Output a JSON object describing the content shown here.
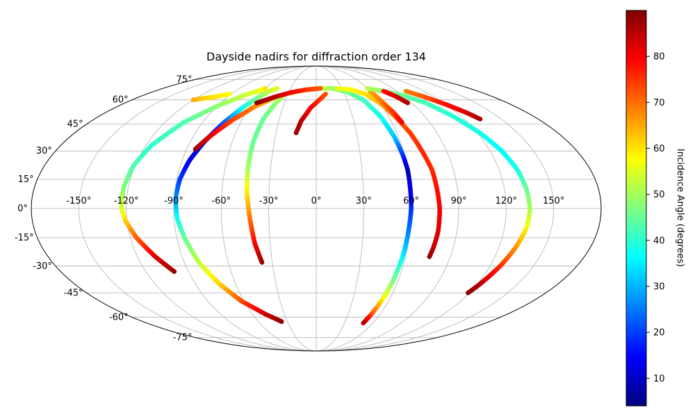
{
  "chart_data": {
    "type": "scatter",
    "projection": "mollweide",
    "title": "Dayside nadirs for diffraction order 134",
    "xlabel": "",
    "ylabel": "",
    "xlim": [
      -180,
      180
    ],
    "ylim": [
      -90,
      90
    ],
    "grid": true,
    "lon_ticks": [
      -150,
      -120,
      -90,
      -60,
      -30,
      0,
      30,
      60,
      90,
      120,
      150
    ],
    "lon_tick_labels": [
      "-150°",
      "-120°",
      "-90°",
      "-60°",
      "-30°",
      "0°",
      "30°",
      "60°",
      "90°",
      "120°",
      "150°"
    ],
    "lat_ticks": [
      75,
      60,
      45,
      30,
      15,
      0,
      -15,
      -30,
      -45,
      -60,
      -75
    ],
    "lat_tick_labels": [
      "75°",
      "60°",
      "45°",
      "30°",
      "15°",
      "0°",
      "-15°",
      "-30°",
      "-45°",
      "-60°",
      "-75°"
    ],
    "colorbar": {
      "label": "Incidence Angle (degrees)",
      "range": [
        4,
        90
      ],
      "ticks": [
        10,
        20,
        30,
        40,
        50,
        60,
        70,
        80
      ],
      "tick_labels": [
        "10",
        "20",
        "30",
        "40",
        "50",
        "60",
        "70",
        "80"
      ],
      "colormap": "jet",
      "stops": [
        "#00007f",
        "#0000ff",
        "#007fff",
        "#00ffff",
        "#7fff7f",
        "#ffff00",
        "#ff7f00",
        "#ff0000",
        "#7f0000"
      ]
    },
    "series": [
      {
        "points": [
          [
            -100,
            -33,
            88
          ],
          [
            -108,
            -25,
            82
          ],
          [
            -116,
            -15,
            72
          ],
          [
            -121,
            -6,
            62
          ],
          [
            -123,
            0,
            55
          ],
          [
            -123,
            10,
            48
          ],
          [
            -121,
            22,
            43
          ],
          [
            -116,
            33,
            40
          ],
          [
            -105,
            46,
            43
          ],
          [
            -90,
            56,
            48
          ],
          [
            -75,
            63,
            53
          ],
          [
            -62,
            67,
            57
          ],
          [
            -60,
            68,
            60
          ]
        ]
      },
      {
        "points": [
          [
            -120,
            60,
            65
          ],
          [
            -112,
            61,
            62
          ],
          [
            -103,
            62,
            60
          ],
          [
            -92,
            64,
            58
          ]
        ]
      },
      {
        "points": [
          [
            -36,
            -63,
            89
          ],
          [
            -48,
            -58,
            84
          ],
          [
            -62,
            -50,
            74
          ],
          [
            -72,
            -40,
            62
          ],
          [
            -80,
            -28,
            53
          ],
          [
            -85,
            -15,
            45
          ],
          [
            -88,
            -5,
            38
          ],
          [
            -89,
            5,
            28
          ],
          [
            -88,
            15,
            20
          ],
          [
            -85,
            25,
            13
          ],
          [
            -80,
            35,
            10
          ],
          [
            -73,
            46,
            22
          ],
          [
            -65,
            56,
            38
          ],
          [
            -57,
            63,
            48
          ],
          [
            -52,
            66,
            53
          ],
          [
            -46,
            68,
            55
          ]
        ]
      },
      {
        "points": [
          [
            -84,
            31,
            88
          ],
          [
            -78,
            38,
            82
          ],
          [
            -68,
            47,
            74
          ],
          [
            -55,
            56,
            68
          ],
          [
            -38,
            63,
            62
          ],
          [
            -20,
            66,
            57
          ],
          [
            0,
            68,
            54
          ],
          [
            20,
            68,
            50
          ],
          [
            35,
            65,
            46
          ],
          [
            46,
            60,
            42
          ],
          [
            53,
            50,
            38
          ],
          [
            57,
            38,
            32
          ],
          [
            59,
            28,
            20
          ],
          [
            60,
            20,
            8
          ],
          [
            60,
            10,
            12
          ],
          [
            60,
            0,
            18
          ],
          [
            59,
            -12,
            25
          ],
          [
            58,
            -25,
            35
          ],
          [
            56,
            -40,
            48
          ],
          [
            54,
            -50,
            60
          ],
          [
            52,
            -58,
            72
          ],
          [
            50,
            -64,
            86
          ]
        ]
      },
      {
        "points": [
          [
            -37,
            -28,
            88
          ],
          [
            -40,
            -18,
            80
          ],
          [
            -42,
            -5,
            70
          ],
          [
            -44,
            8,
            60
          ],
          [
            -45,
            22,
            50
          ],
          [
            -45,
            35,
            45
          ],
          [
            -43,
            48,
            45
          ],
          [
            -38,
            58,
            48
          ],
          [
            -33,
            64,
            52
          ]
        ]
      },
      {
        "points": [
          [
            -56,
            58,
            89
          ],
          [
            -42,
            62,
            85
          ],
          [
            -28,
            65,
            80
          ],
          [
            -12,
            67,
            76
          ],
          [
            5,
            68,
            72
          ]
        ]
      },
      {
        "points": [
          [
            -15,
            40,
            88
          ],
          [
            -12,
            47,
            85
          ],
          [
            -5,
            55,
            80
          ],
          [
            3,
            60,
            76
          ],
          [
            10,
            64,
            72
          ]
        ]
      },
      {
        "points": [
          [
            25,
            68,
            55
          ],
          [
            40,
            67,
            58
          ],
          [
            52,
            64,
            60
          ],
          [
            60,
            58,
            64
          ],
          [
            65,
            50,
            70
          ],
          [
            70,
            40,
            74
          ],
          [
            73,
            30,
            76
          ],
          [
            76,
            20,
            76
          ],
          [
            77,
            10,
            78
          ],
          [
            78,
            0,
            80
          ],
          [
            78,
            -12,
            82
          ],
          [
            77,
            -20,
            84
          ],
          [
            76,
            -25,
            88
          ]
        ]
      },
      {
        "points": [
          [
            60,
            66,
            65
          ],
          [
            63,
            58,
            70
          ],
          [
            66,
            52,
            75
          ],
          [
            68,
            46,
            80
          ]
        ]
      },
      {
        "points": [
          [
            60,
            68,
            52
          ],
          [
            75,
            66,
            48
          ],
          [
            90,
            63,
            45
          ],
          [
            103,
            58,
            42
          ],
          [
            113,
            50,
            40
          ],
          [
            122,
            40,
            38
          ],
          [
            128,
            30,
            36
          ],
          [
            132,
            20,
            38
          ],
          [
            134,
            10,
            45
          ],
          [
            135,
            0,
            50
          ],
          [
            134,
            -10,
            58
          ],
          [
            131,
            -20,
            66
          ],
          [
            127,
            -30,
            75
          ],
          [
            122,
            -40,
            85
          ],
          [
            119,
            -45,
            89
          ]
        ]
      },
      {
        "points": [
          [
            75,
            66,
            78
          ],
          [
            82,
            62,
            82
          ],
          [
            86,
            58,
            86
          ]
        ]
      },
      {
        "points": [
          [
            100,
            66,
            68
          ],
          [
            110,
            62,
            72
          ],
          [
            120,
            57,
            78
          ],
          [
            128,
            52,
            82
          ],
          [
            133,
            48,
            86
          ]
        ]
      }
    ]
  }
}
